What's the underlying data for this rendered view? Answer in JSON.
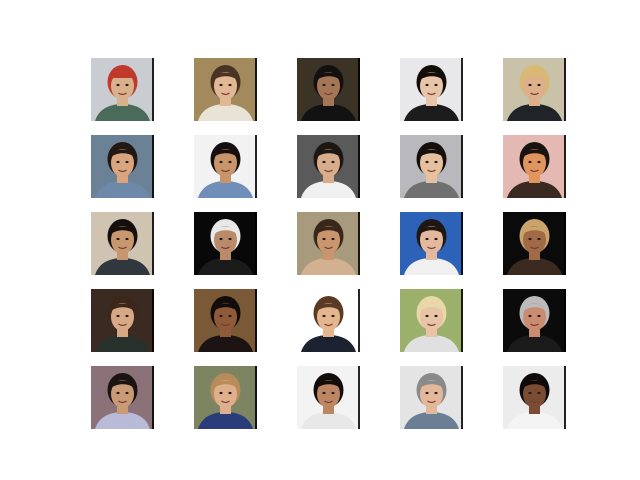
{
  "grid": {
    "rows": 5,
    "cols": 5,
    "images": [
      {
        "bg": "#c9cdd2",
        "skin": "#d9b08c",
        "hair": "#c0392b",
        "shirt": "#4a6b5a",
        "hat": true
      },
      {
        "bg": "#a38a5c",
        "skin": "#e0b894",
        "hair": "#4a3325",
        "shirt": "#e9e3d6"
      },
      {
        "bg": "#3b3426",
        "skin": "#a57656",
        "hair": "#141010",
        "shirt": "#121212"
      },
      {
        "bg": "#e8e8ea",
        "skin": "#e8c4a8",
        "hair": "#120c0a",
        "shirt": "#1c1c1c"
      },
      {
        "bg": "#c9c2a8",
        "skin": "#dcb08a",
        "hair": "#d8b873",
        "shirt": "#202428"
      },
      {
        "bg": "#6b8196",
        "skin": "#d8a57e",
        "hair": "#241912",
        "shirt": "#6d88a8"
      },
      {
        "bg": "#f2f2f2",
        "skin": "#c8946a",
        "hair": "#15100e",
        "shirt": "#6f8fb8"
      },
      {
        "bg": "#5a5a5a",
        "skin": "#d7ad8c",
        "hair": "#1d1714",
        "shirt": "#f0f0f0"
      },
      {
        "bg": "#b9b9bd",
        "skin": "#e6c1a0",
        "hair": "#16100c",
        "shirt": "#707070"
      },
      {
        "bg": "#e4b9b3",
        "skin": "#e0955f",
        "hair": "#1a1411",
        "shirt": "#3b2a22"
      },
      {
        "bg": "#cfc4b2",
        "skin": "#c7976f",
        "hair": "#15100e",
        "shirt": "#31373f"
      },
      {
        "bg": "#080808",
        "skin": "#b98b6b",
        "hair": "#e8e8e8",
        "shirt": "#1b1b1b"
      },
      {
        "bg": "#a89a7c",
        "skin": "#c9956d",
        "hair": "#3a271b",
        "shirt": "#d3b08f"
      },
      {
        "bg": "#2c63b8",
        "skin": "#e2b99c",
        "hair": "#201612",
        "shirt": "#f0f0f0"
      },
      {
        "bg": "#0a0a0a",
        "skin": "#a06a46",
        "hair": "#c9a46a",
        "shirt": "#3a2a20"
      },
      {
        "bg": "#3a2a22",
        "skin": "#d7a885",
        "hair": "#3c271a",
        "shirt": "#27302a"
      },
      {
        "bg": "#7a5a36",
        "skin": "#8e5a3a",
        "hair": "#120c0a",
        "shirt": "#1c1412"
      },
      {
        "bg": "#ffffff",
        "skin": "#e4b690",
        "hair": "#5a3a22",
        "shirt": "#1c2230"
      },
      {
        "bg": "#9bb06b",
        "skin": "#e9c3a6",
        "hair": "#e8d7a8",
        "shirt": "#e0e0e0"
      },
      {
        "bg": "#0b0b0b",
        "skin": "#c98c70",
        "hair": "#bbbbbb",
        "shirt": "#1b1b1b"
      },
      {
        "bg": "#8a7278",
        "skin": "#c89a76",
        "hair": "#1b1512",
        "shirt": "#b9b9d8"
      },
      {
        "bg": "#7d8462",
        "skin": "#dfae8c",
        "hair": "#b78c5a",
        "shirt": "#2b3c7a"
      },
      {
        "bg": "#f3f3f3",
        "skin": "#bb8661",
        "hair": "#120c0a",
        "shirt": "#e8e8e8"
      },
      {
        "bg": "#e4e4e4",
        "skin": "#e3b79a",
        "hair": "#8a8a8a",
        "shirt": "#6b7f94"
      },
      {
        "bg": "#ececec",
        "skin": "#7a4c34",
        "hair": "#0e0a09",
        "shirt": "#f4f4f4"
      }
    ]
  }
}
